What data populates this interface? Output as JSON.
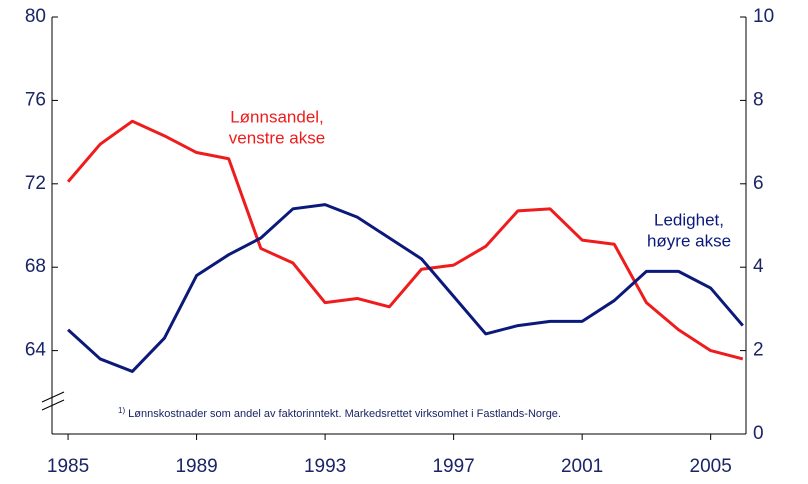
{
  "chart_data": {
    "type": "line",
    "x": [
      1985,
      1986,
      1987,
      1988,
      1989,
      1990,
      1991,
      1992,
      1993,
      1994,
      1995,
      1996,
      1997,
      1998,
      1999,
      2000,
      2001,
      2002,
      2003,
      2004,
      2005,
      2006
    ],
    "series": [
      {
        "name": "Lønnsandel",
        "color": "#ee1c1c",
        "values": [
          72.1,
          73.9,
          75.0,
          74.3,
          73.5,
          73.2,
          68.9,
          68.2,
          66.3,
          66.5,
          66.1,
          67.9,
          68.1,
          69.0,
          70.7,
          70.8,
          69.3,
          69.1,
          66.3,
          65.0,
          64.0,
          63.6
        ]
      },
      {
        "name": "Ledighet",
        "color": "#0b1a7a",
        "axis": "y2",
        "values": [
          2.5,
          1.8,
          1.5,
          2.3,
          3.8,
          4.3,
          4.7,
          5.4,
          5.5,
          5.2,
          4.7,
          4.2,
          3.3,
          2.4,
          2.6,
          2.7,
          2.7,
          3.2,
          3.9,
          3.9,
          3.5,
          2.6
        ]
      }
    ],
    "annotations": [
      [
        "Lønnsandel,",
        "venstre akse"
      ],
      [
        "Ledighet,",
        "høyre akse"
      ]
    ],
    "footnote_marker": "1)",
    "footnote": "Lønnskostnader som andel av faktorinntekt. Markedsrettet virksomhet i Fastlands-Norge.",
    "xlim": [
      1984.5,
      2006.1
    ],
    "xticks": [
      1985,
      1989,
      1993,
      1997,
      2001,
      2005
    ],
    "ylim": [
      60,
      80
    ],
    "yticks": [
      64,
      68,
      72,
      76,
      80
    ],
    "y2lim": [
      0,
      10
    ],
    "y2ticks": [
      0,
      2,
      4,
      6,
      8,
      10
    ]
  }
}
